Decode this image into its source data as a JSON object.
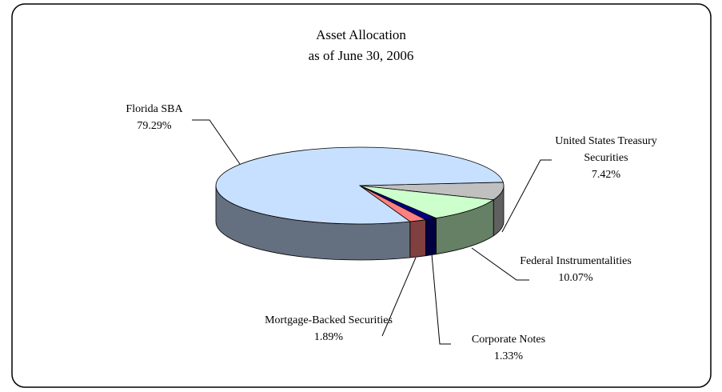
{
  "chart_data": {
    "type": "pie3d",
    "title": "Asset Allocation",
    "subtitle": "as of  June 30, 2006",
    "categories": [
      "United States Treasury Securities",
      "Federal Instrumentalities",
      "Corporate Notes",
      "Mortgage-Backed Securities",
      "Florida SBA"
    ],
    "values": [
      7.42,
      10.07,
      1.33,
      1.89,
      79.29
    ],
    "value_labels": [
      "7.42%",
      "10.07%",
      "1.33%",
      "1.89%",
      "79.29%"
    ],
    "colors": [
      "#c0c0c0",
      "#ccffcc",
      "#000080",
      "#ff8080",
      "#c8e0ff"
    ]
  }
}
